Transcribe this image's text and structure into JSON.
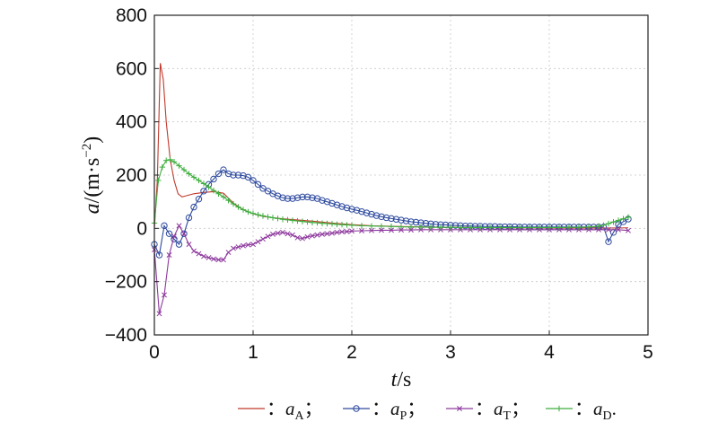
{
  "chart_data": {
    "type": "line",
    "xlabel_var": "t",
    "xlabel_unit": "/s",
    "ylabel_var": "a",
    "ylabel_unit": "/(m·s",
    "ylabel_exp": "−2",
    "ylabel_close": ")",
    "xlim": [
      0,
      5
    ],
    "ylim": [
      -400,
      800
    ],
    "xticks": [
      0,
      1,
      2,
      3,
      4,
      5
    ],
    "xtick_labels": [
      "0",
      "1",
      "2",
      "3",
      "4",
      "5"
    ],
    "yticks": [
      -400,
      -200,
      0,
      200,
      400,
      600,
      800
    ],
    "ytick_labels": [
      "−400",
      "−200",
      "0",
      "200",
      "400",
      "600",
      "800"
    ],
    "grid": true,
    "legend_position": "bottom",
    "series": [
      {
        "name_var": "a",
        "name_sub": "A",
        "sep": "；",
        "color": "#c0392b",
        "marker": "none",
        "points": [
          [
            0.0,
            0
          ],
          [
            0.03,
            180
          ],
          [
            0.06,
            620
          ],
          [
            0.09,
            560
          ],
          [
            0.12,
            400
          ],
          [
            0.16,
            260
          ],
          [
            0.2,
            180
          ],
          [
            0.24,
            130
          ],
          [
            0.28,
            118
          ],
          [
            0.32,
            122
          ],
          [
            0.4,
            130
          ],
          [
            0.5,
            135
          ],
          [
            0.6,
            138
          ],
          [
            0.7,
            132
          ],
          [
            0.8,
            95
          ],
          [
            0.9,
            70
          ],
          [
            1.0,
            55
          ],
          [
            1.1,
            45
          ],
          [
            1.2,
            40
          ],
          [
            1.3,
            36
          ],
          [
            1.4,
            33
          ],
          [
            1.5,
            30
          ],
          [
            1.6,
            27
          ],
          [
            1.8,
            20
          ],
          [
            2.0,
            14
          ],
          [
            2.2,
            10
          ],
          [
            2.5,
            7
          ],
          [
            3.0,
            4
          ],
          [
            3.5,
            2
          ],
          [
            4.0,
            1
          ],
          [
            4.5,
            1
          ],
          [
            4.8,
            2
          ]
        ]
      },
      {
        "name_var": "a",
        "name_sub": "P",
        "sep": "；",
        "color": "#2e4a9e",
        "marker": "circle",
        "points": [
          [
            0.0,
            -60
          ],
          [
            0.05,
            -100
          ],
          [
            0.1,
            10
          ],
          [
            0.15,
            -20
          ],
          [
            0.2,
            -40
          ],
          [
            0.25,
            -60
          ],
          [
            0.3,
            -20
          ],
          [
            0.35,
            40
          ],
          [
            0.4,
            80
          ],
          [
            0.45,
            110
          ],
          [
            0.5,
            140
          ],
          [
            0.55,
            165
          ],
          [
            0.6,
            185
          ],
          [
            0.65,
            205
          ],
          [
            0.7,
            220
          ],
          [
            0.75,
            205
          ],
          [
            0.8,
            200
          ],
          [
            0.85,
            200
          ],
          [
            0.9,
            198
          ],
          [
            0.95,
            192
          ],
          [
            1.0,
            180
          ],
          [
            1.05,
            165
          ],
          [
            1.1,
            150
          ],
          [
            1.15,
            140
          ],
          [
            1.2,
            130
          ],
          [
            1.25,
            122
          ],
          [
            1.3,
            115
          ],
          [
            1.35,
            112
          ],
          [
            1.4,
            112
          ],
          [
            1.45,
            115
          ],
          [
            1.5,
            118
          ],
          [
            1.55,
            118
          ],
          [
            1.6,
            115
          ],
          [
            1.65,
            112
          ],
          [
            1.7,
            105
          ],
          [
            1.75,
            100
          ],
          [
            1.8,
            94
          ],
          [
            1.85,
            88
          ],
          [
            1.9,
            82
          ],
          [
            1.95,
            77
          ],
          [
            2.0,
            72
          ],
          [
            2.05,
            68
          ],
          [
            2.1,
            63
          ],
          [
            2.15,
            58
          ],
          [
            2.2,
            53
          ],
          [
            2.25,
            48
          ],
          [
            2.3,
            44
          ],
          [
            2.35,
            40
          ],
          [
            2.4,
            37
          ],
          [
            2.45,
            34
          ],
          [
            2.5,
            31
          ],
          [
            2.55,
            28
          ],
          [
            2.6,
            25
          ],
          [
            2.65,
            23
          ],
          [
            2.7,
            21
          ],
          [
            2.75,
            19
          ],
          [
            2.8,
            17
          ],
          [
            2.85,
            15
          ],
          [
            2.9,
            14
          ],
          [
            2.95,
            13
          ],
          [
            3.0,
            12
          ],
          [
            3.05,
            11
          ],
          [
            3.1,
            10
          ],
          [
            3.15,
            9
          ],
          [
            3.2,
            9
          ],
          [
            3.25,
            8
          ],
          [
            3.3,
            8
          ],
          [
            3.35,
            7
          ],
          [
            3.4,
            7
          ],
          [
            3.45,
            7
          ],
          [
            3.5,
            6
          ],
          [
            3.55,
            6
          ],
          [
            3.6,
            6
          ],
          [
            3.65,
            6
          ],
          [
            3.7,
            5
          ],
          [
            3.75,
            5
          ],
          [
            3.8,
            5
          ],
          [
            3.85,
            5
          ],
          [
            3.9,
            5
          ],
          [
            3.95,
            5
          ],
          [
            4.0,
            5
          ],
          [
            4.05,
            5
          ],
          [
            4.1,
            5
          ],
          [
            4.15,
            5
          ],
          [
            4.2,
            5
          ],
          [
            4.25,
            5
          ],
          [
            4.3,
            5
          ],
          [
            4.35,
            5
          ],
          [
            4.4,
            5
          ],
          [
            4.45,
            5
          ],
          [
            4.5,
            5
          ],
          [
            4.55,
            5
          ],
          [
            4.6,
            -50
          ],
          [
            4.65,
            -15
          ],
          [
            4.7,
            15
          ],
          [
            4.75,
            25
          ],
          [
            4.8,
            35
          ]
        ]
      },
      {
        "name_var": "a",
        "name_sub": "T",
        "sep": "；",
        "color": "#8e3a9e",
        "marker": "x",
        "points": [
          [
            0.0,
            -80
          ],
          [
            0.05,
            -320
          ],
          [
            0.1,
            -250
          ],
          [
            0.15,
            -100
          ],
          [
            0.2,
            -30
          ],
          [
            0.25,
            10
          ],
          [
            0.3,
            -20
          ],
          [
            0.35,
            -60
          ],
          [
            0.4,
            -85
          ],
          [
            0.45,
            -95
          ],
          [
            0.5,
            -105
          ],
          [
            0.55,
            -110
          ],
          [
            0.6,
            -115
          ],
          [
            0.65,
            -118
          ],
          [
            0.7,
            -118
          ],
          [
            0.75,
            -90
          ],
          [
            0.8,
            -75
          ],
          [
            0.85,
            -70
          ],
          [
            0.9,
            -65
          ],
          [
            0.95,
            -62
          ],
          [
            1.0,
            -60
          ],
          [
            1.05,
            -50
          ],
          [
            1.1,
            -40
          ],
          [
            1.15,
            -30
          ],
          [
            1.2,
            -22
          ],
          [
            1.25,
            -18
          ],
          [
            1.3,
            -15
          ],
          [
            1.35,
            -20
          ],
          [
            1.4,
            -25
          ],
          [
            1.45,
            -35
          ],
          [
            1.5,
            -38
          ],
          [
            1.55,
            -32
          ],
          [
            1.6,
            -28
          ],
          [
            1.65,
            -25
          ],
          [
            1.7,
            -22
          ],
          [
            1.75,
            -20
          ],
          [
            1.8,
            -18
          ],
          [
            1.85,
            -15
          ],
          [
            1.9,
            -13
          ],
          [
            1.95,
            -12
          ],
          [
            2.0,
            -10
          ],
          [
            2.1,
            -9
          ],
          [
            2.2,
            -8
          ],
          [
            2.3,
            -7
          ],
          [
            2.4,
            -7
          ],
          [
            2.5,
            -6
          ],
          [
            2.6,
            -6
          ],
          [
            2.7,
            -5
          ],
          [
            2.8,
            -5
          ],
          [
            2.9,
            -5
          ],
          [
            3.0,
            -5
          ],
          [
            3.1,
            -5
          ],
          [
            3.2,
            -5
          ],
          [
            3.3,
            -5
          ],
          [
            3.4,
            -5
          ],
          [
            3.5,
            -5
          ],
          [
            3.6,
            -5
          ],
          [
            3.7,
            -5
          ],
          [
            3.8,
            -5
          ],
          [
            3.9,
            -5
          ],
          [
            4.0,
            -5
          ],
          [
            4.1,
            -5
          ],
          [
            4.2,
            -5
          ],
          [
            4.3,
            -5
          ],
          [
            4.4,
            -5
          ],
          [
            4.5,
            -5
          ],
          [
            4.6,
            -5
          ],
          [
            4.7,
            -5
          ],
          [
            4.8,
            -8
          ]
        ]
      },
      {
        "name_var": "a",
        "name_sub": "D",
        "sep": ".",
        "color": "#3fae3f",
        "marker": "plus",
        "points": [
          [
            0.0,
            20
          ],
          [
            0.04,
            180
          ],
          [
            0.08,
            230
          ],
          [
            0.12,
            255
          ],
          [
            0.16,
            258
          ],
          [
            0.2,
            250
          ],
          [
            0.25,
            235
          ],
          [
            0.3,
            220
          ],
          [
            0.35,
            205
          ],
          [
            0.4,
            192
          ],
          [
            0.45,
            180
          ],
          [
            0.5,
            168
          ],
          [
            0.55,
            155
          ],
          [
            0.6,
            142
          ],
          [
            0.65,
            130
          ],
          [
            0.7,
            118
          ],
          [
            0.75,
            105
          ],
          [
            0.8,
            92
          ],
          [
            0.85,
            80
          ],
          [
            0.9,
            70
          ],
          [
            0.95,
            62
          ],
          [
            1.0,
            56
          ],
          [
            1.05,
            51
          ],
          [
            1.1,
            47
          ],
          [
            1.15,
            43
          ],
          [
            1.2,
            40
          ],
          [
            1.25,
            37
          ],
          [
            1.3,
            34
          ],
          [
            1.35,
            32
          ],
          [
            1.4,
            30
          ],
          [
            1.45,
            28
          ],
          [
            1.5,
            26
          ],
          [
            1.55,
            24
          ],
          [
            1.6,
            22
          ],
          [
            1.65,
            21
          ],
          [
            1.7,
            19
          ],
          [
            1.75,
            18
          ],
          [
            1.8,
            17
          ],
          [
            1.85,
            15
          ],
          [
            1.9,
            14
          ],
          [
            1.95,
            13
          ],
          [
            2.0,
            12
          ],
          [
            2.1,
            10
          ],
          [
            2.2,
            9
          ],
          [
            2.3,
            8
          ],
          [
            2.4,
            7
          ],
          [
            2.5,
            6
          ],
          [
            2.6,
            5
          ],
          [
            2.7,
            5
          ],
          [
            2.8,
            4
          ],
          [
            2.9,
            4
          ],
          [
            3.0,
            4
          ],
          [
            3.1,
            3
          ],
          [
            3.2,
            3
          ],
          [
            3.3,
            3
          ],
          [
            3.4,
            3
          ],
          [
            3.5,
            3
          ],
          [
            3.6,
            3
          ],
          [
            3.7,
            3
          ],
          [
            3.8,
            3
          ],
          [
            3.9,
            3
          ],
          [
            4.0,
            3
          ],
          [
            4.1,
            3
          ],
          [
            4.2,
            4
          ],
          [
            4.3,
            4
          ],
          [
            4.4,
            5
          ],
          [
            4.5,
            8
          ],
          [
            4.55,
            12
          ],
          [
            4.6,
            18
          ],
          [
            4.65,
            24
          ],
          [
            4.7,
            30
          ],
          [
            4.75,
            36
          ],
          [
            4.8,
            42
          ]
        ]
      }
    ]
  }
}
